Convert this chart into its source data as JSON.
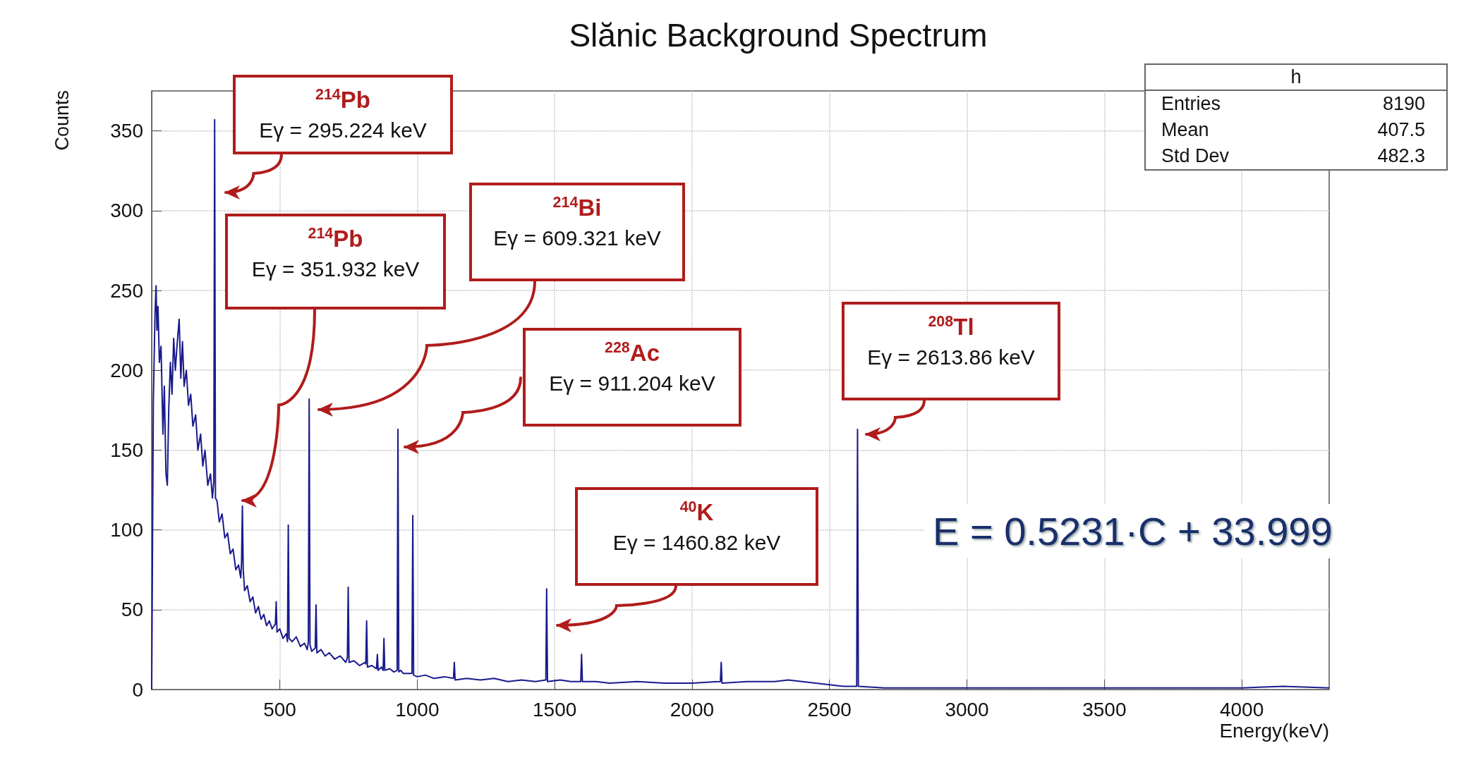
{
  "chart_data": {
    "type": "line",
    "title": "Slănic Background Spectrum",
    "xlabel": "Energy(keV)",
    "ylabel": "Counts",
    "x": [
      34,
      40,
      46,
      50,
      53,
      57,
      62,
      68,
      75,
      80,
      86,
      91,
      96,
      102,
      108,
      114,
      120,
      126,
      134,
      140,
      146,
      152,
      160,
      168,
      176,
      184,
      194,
      202,
      212,
      220,
      228,
      238,
      248,
      255,
      260,
      263,
      266,
      272,
      280,
      290,
      300,
      310,
      320,
      330,
      340,
      350,
      358,
      361,
      364,
      367,
      372,
      382,
      392,
      402,
      412,
      422,
      432,
      442,
      452,
      462,
      472,
      484,
      487,
      490,
      500,
      512,
      524,
      528,
      531,
      534,
      545,
      560,
      575,
      590,
      600,
      604,
      607,
      610,
      616,
      629,
      632,
      635,
      650,
      665,
      680,
      700,
      720,
      740,
      746,
      749,
      752,
      770,
      790,
      810,
      813,
      816,
      819,
      835,
      852,
      855,
      858,
      870,
      876,
      879,
      882,
      900,
      915,
      927,
      930,
      933,
      940,
      950,
      970,
      981,
      984,
      987,
      1000,
      1030,
      1060,
      1100,
      1132,
      1135,
      1138,
      1180,
      1230,
      1280,
      1330,
      1380,
      1430,
      1468,
      1471,
      1474,
      1520,
      1560,
      1595,
      1598,
      1601,
      1650,
      1700,
      1800,
      1900,
      2000,
      2103,
      2106,
      2109,
      2200,
      2300,
      2350,
      2400,
      2450,
      2500,
      2550,
      2599,
      2602,
      2605,
      2700,
      2800,
      3000,
      3200,
      3500,
      3800,
      4000,
      4150,
      4318
    ],
    "series": [
      {
        "color": "#1a1a8c",
        "values": [
          0,
          180,
          235,
          253,
          225,
          240,
          205,
          215,
          160,
          190,
          135,
          128,
          175,
          205,
          185,
          220,
          200,
          215,
          232,
          195,
          218,
          190,
          200,
          178,
          185,
          165,
          172,
          150,
          160,
          140,
          150,
          128,
          135,
          120,
          130,
          357,
          120,
          118,
          105,
          110,
          95,
          98,
          85,
          88,
          75,
          78,
          70,
          80,
          115,
          75,
          62,
          65,
          55,
          58,
          48,
          52,
          44,
          47,
          40,
          43,
          38,
          41,
          55,
          36,
          38,
          32,
          35,
          30,
          103,
          32,
          30,
          33,
          27,
          29,
          25,
          30,
          182,
          28,
          24,
          26,
          53,
          23,
          25,
          21,
          23,
          19,
          21,
          17,
          20,
          64,
          17,
          18,
          15,
          17,
          16,
          43,
          14,
          15,
          13,
          22,
          12,
          14,
          12,
          32,
          12,
          13,
          11,
          12,
          163,
          11,
          12,
          10,
          10,
          10,
          109,
          9,
          8,
          9,
          7,
          8,
          7,
          17,
          6,
          7,
          6,
          7,
          5,
          6,
          5,
          6,
          63,
          5,
          6,
          5,
          5,
          22,
          5,
          5,
          4,
          5,
          4,
          4,
          5,
          17,
          4,
          5,
          5,
          6,
          5,
          4,
          3,
          2,
          2,
          163,
          2,
          1,
          1,
          1,
          1,
          1,
          1,
          1,
          2,
          1
        ]
      }
    ],
    "xlim": [
      34,
      4318
    ],
    "xticks": [
      500,
      1000,
      1500,
      2000,
      2500,
      3000,
      3500,
      4000
    ],
    "ylim": [
      0,
      375
    ],
    "yticks": [
      0,
      50,
      100,
      150,
      200,
      250,
      300,
      350
    ],
    "grid": true,
    "annotations": [
      "$^{214}$Pb\nEγ = 295.224 keV",
      "$^{214}$Pb\nEγ = 351.932 keV",
      "$^{214}$Bi\nEγ = 609.321 keV",
      "$^{228}$Ac\nEγ = 911.204 keV",
      "$^{40}$K\nEγ = 1460.82 keV",
      "$^{208}$Tl\nEγ = 2613.86 keV",
      "h",
      "Entries 8190",
      "Mean 407.5",
      "Std Dev 482.3",
      "E = 0.5231·C + 33.999"
    ]
  }
}
